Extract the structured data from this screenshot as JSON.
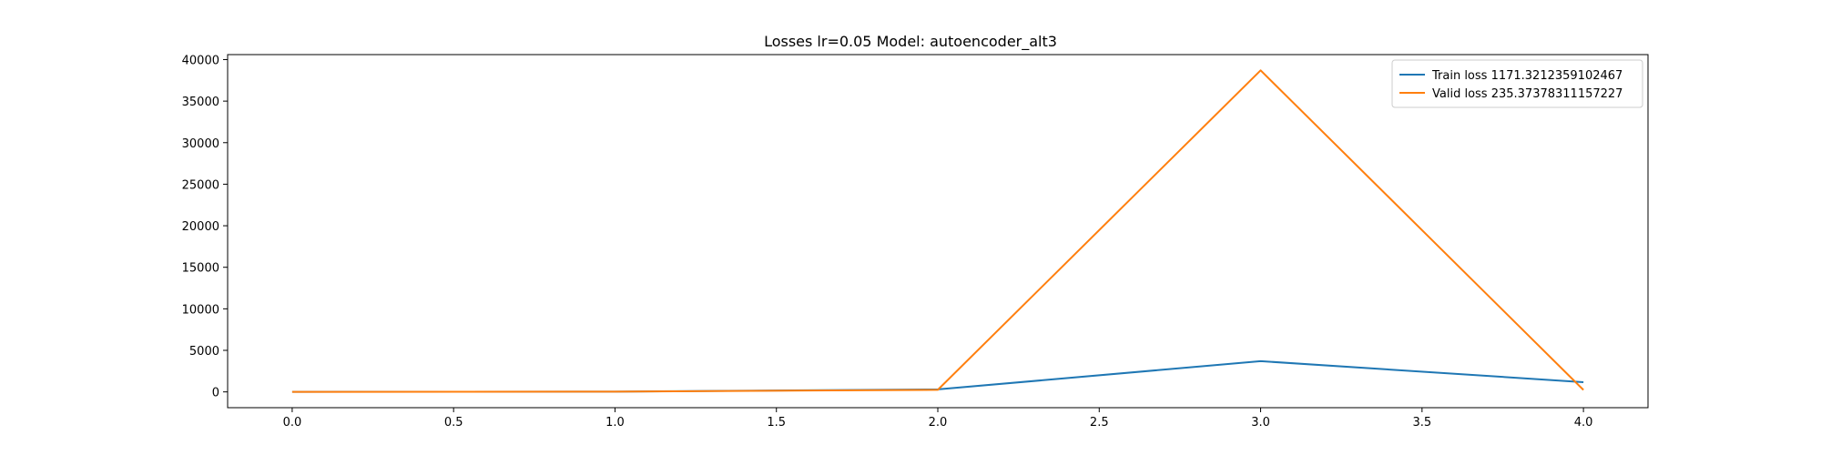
{
  "chart_data": {
    "type": "line",
    "title": "Losses lr=0.05 Model: autoencoder_alt3",
    "xlabel": "",
    "ylabel": "",
    "x": [
      0,
      1,
      2,
      3,
      4
    ],
    "xlim": [
      -0.2,
      4.2
    ],
    "ylim": [
      -1900,
      40600
    ],
    "xticks": [
      0.0,
      0.5,
      1.0,
      1.5,
      2.0,
      2.5,
      3.0,
      3.5,
      4.0
    ],
    "xtick_labels": [
      "0.0",
      "0.5",
      "1.0",
      "1.5",
      "2.0",
      "2.5",
      "3.0",
      "3.5",
      "4.0"
    ],
    "yticks": [
      0,
      5000,
      10000,
      15000,
      20000,
      25000,
      30000,
      35000,
      40000
    ],
    "ytick_labels": [
      "0",
      "5000",
      "10000",
      "15000",
      "20000",
      "25000",
      "30000",
      "35000",
      "40000"
    ],
    "grid": false,
    "legend_position": "top-right",
    "series": [
      {
        "name": "Train loss 1171.3212359102467",
        "color": "#1f77b4",
        "values": [
          5,
          35,
          300,
          3700,
          1171.3212359102467
        ]
      },
      {
        "name": "Valid loss 235.37378311157227",
        "color": "#ff7f0e",
        "values": [
          5,
          30,
          250,
          38700,
          235.37378311157227
        ]
      }
    ]
  }
}
